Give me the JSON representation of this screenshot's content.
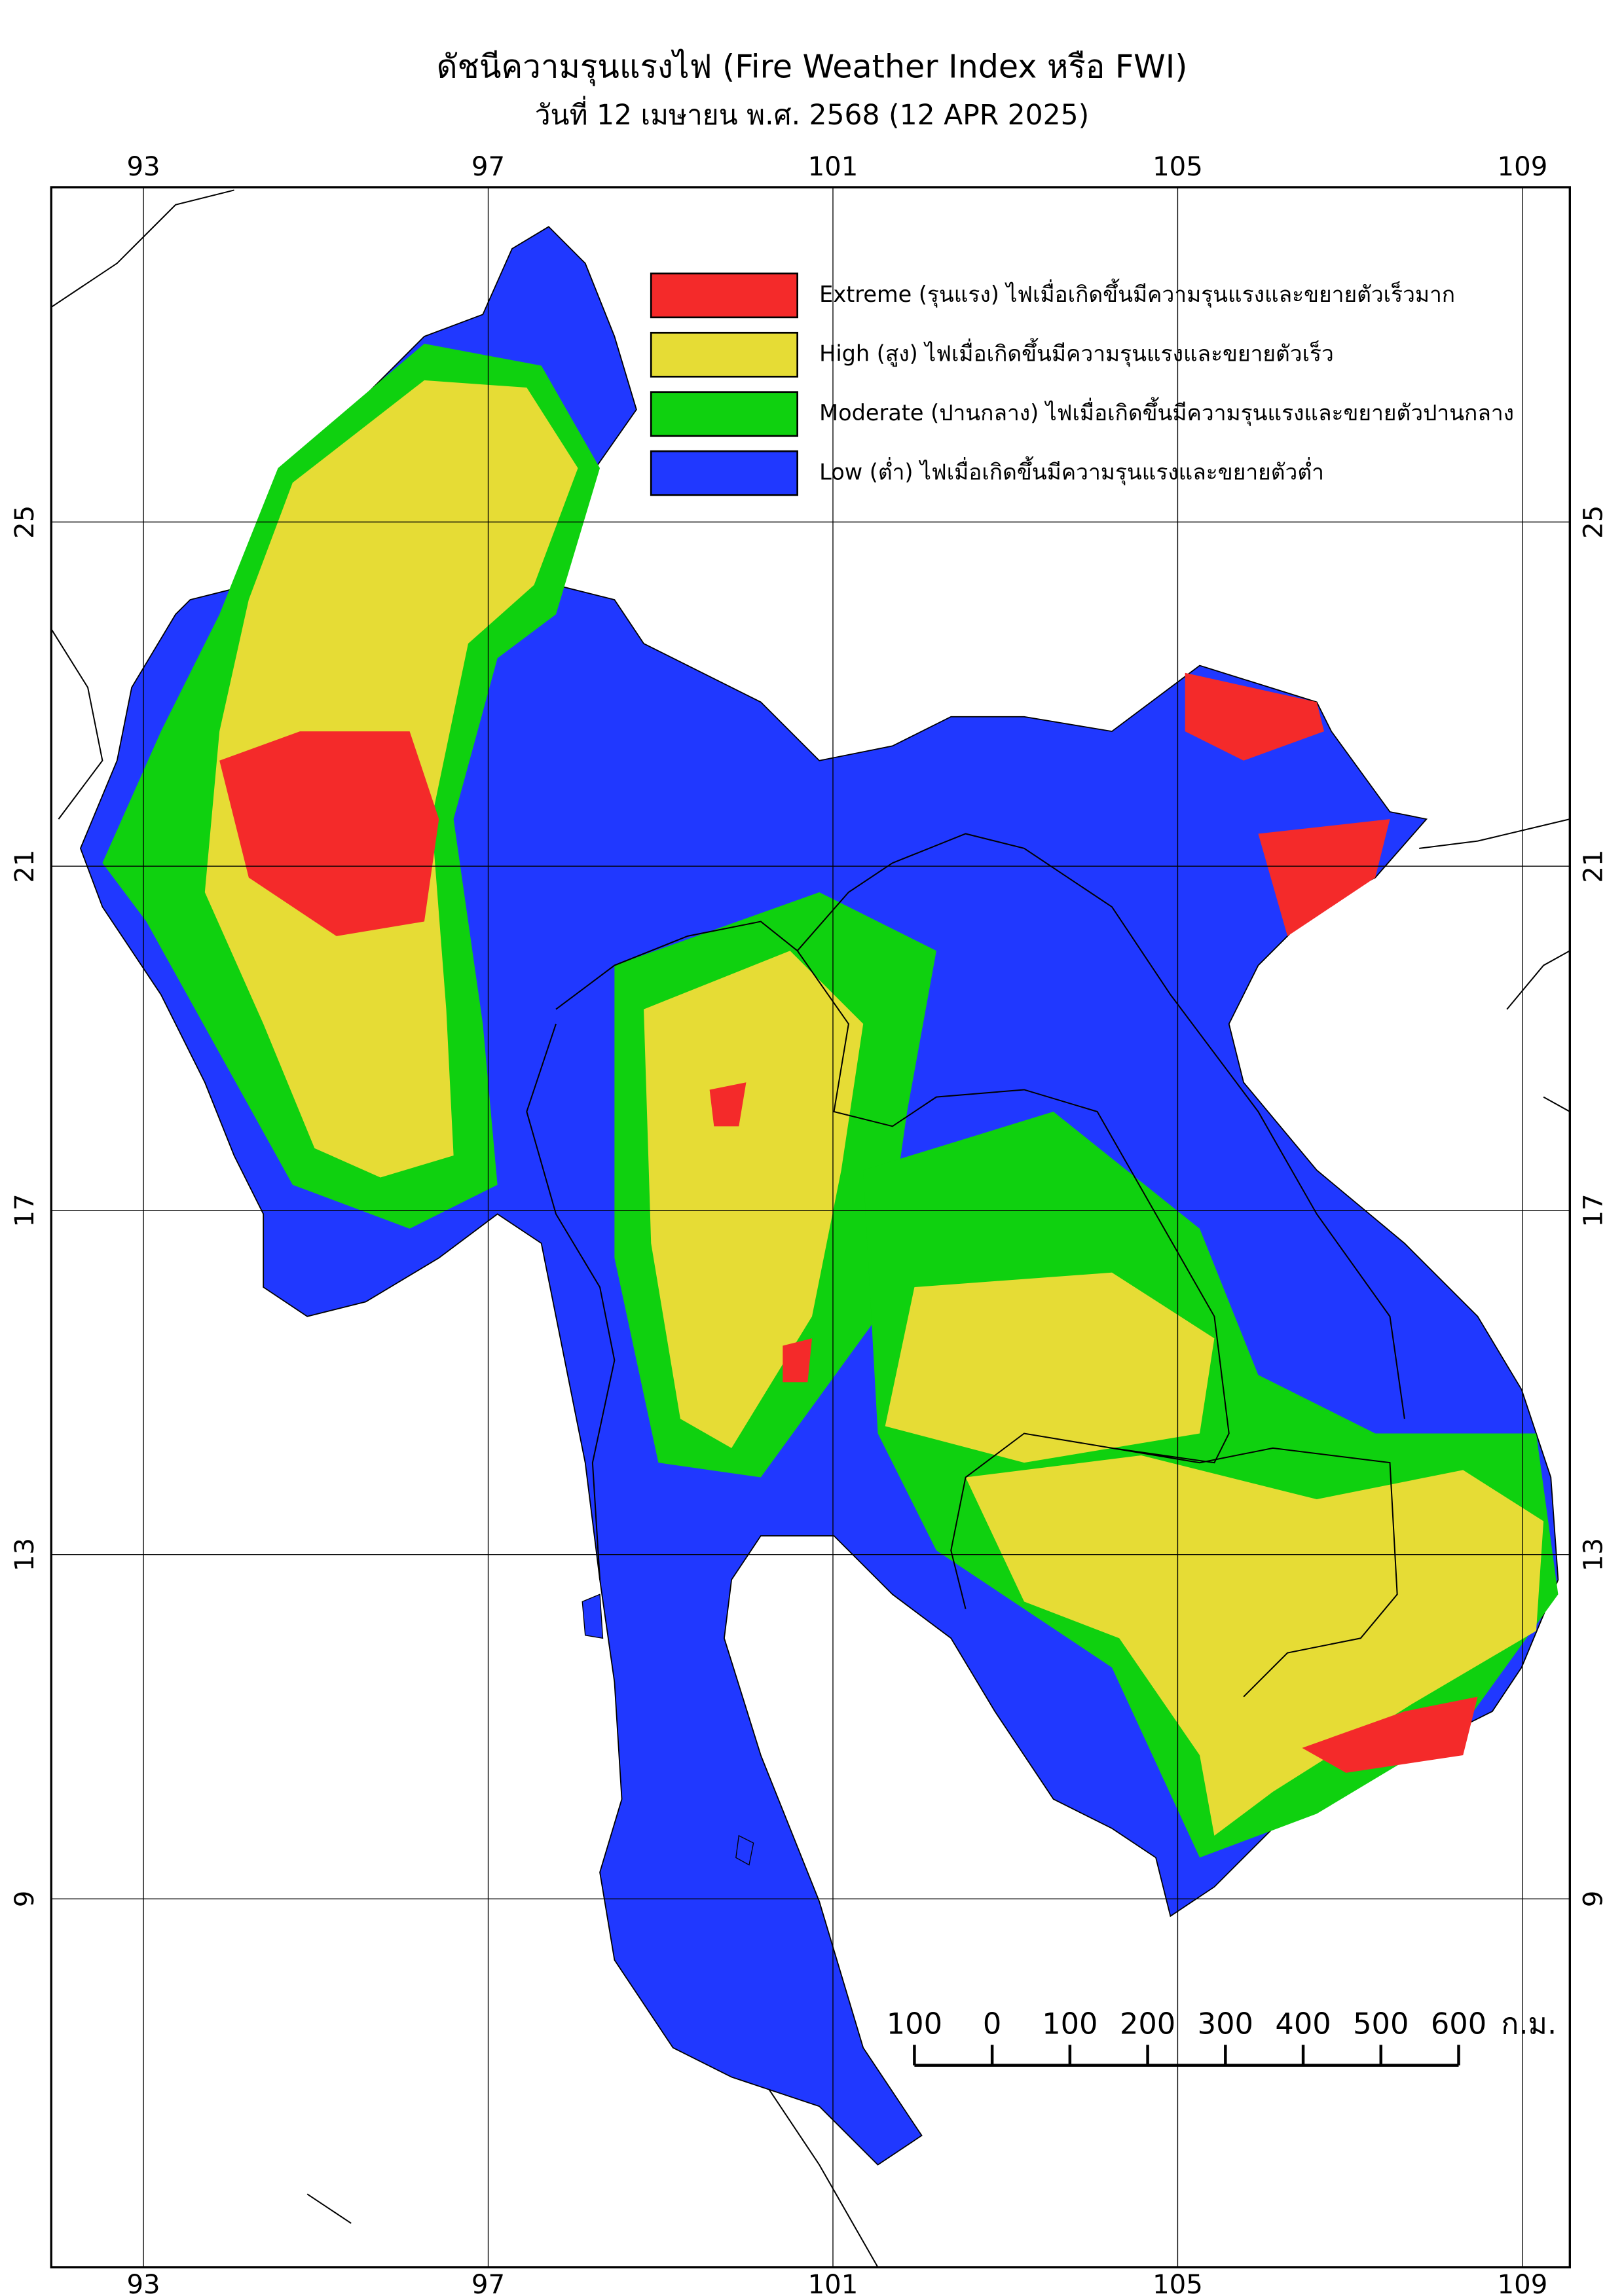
{
  "title": "ดัชนีความรุนแรงไฟ (Fire Weather Index หรือ FWI)",
  "subtitle": "วันที่ 12 เมษายน พ.ศ. 2568 (12 APR 2025)",
  "map": {
    "xlim": [
      91.93,
      109.55
    ],
    "ylim": [
      4.72,
      28.89
    ],
    "xticks": [
      93,
      97,
      101,
      105,
      109
    ],
    "yticks": [
      25,
      21,
      17,
      13,
      9
    ],
    "grid": true
  },
  "legend": [
    {
      "label": "Extreme (รุนแรง) ไฟเมื่อเกิดขึ้นมีความรุนแรงและขยายตัวเร็วมาก",
      "color": "#f42a2a"
    },
    {
      "label": "High (สูง) ไฟเมื่อเกิดขึ้นมีความรุนแรงและขยายตัวเร็ว",
      "color": "#e6dc35"
    },
    {
      "label": "Moderate (ปานกลาง) ไฟเมื่อเกิดขึ้นมีความรุนแรงและขยายตัวปานกลาง",
      "color": "#0fd10f"
    },
    {
      "label": "Low (ต่ำ) ไฟเมื่อเกิดขึ้นมีความรุนแรงและขยายตัวต่ำ",
      "color": "#2038ff"
    }
  ],
  "scale_bar": {
    "ticks": [
      {
        "value": -100,
        "label": "100"
      },
      0,
      100,
      200,
      300,
      400,
      500,
      600
    ],
    "unit": "ก.ม."
  }
}
